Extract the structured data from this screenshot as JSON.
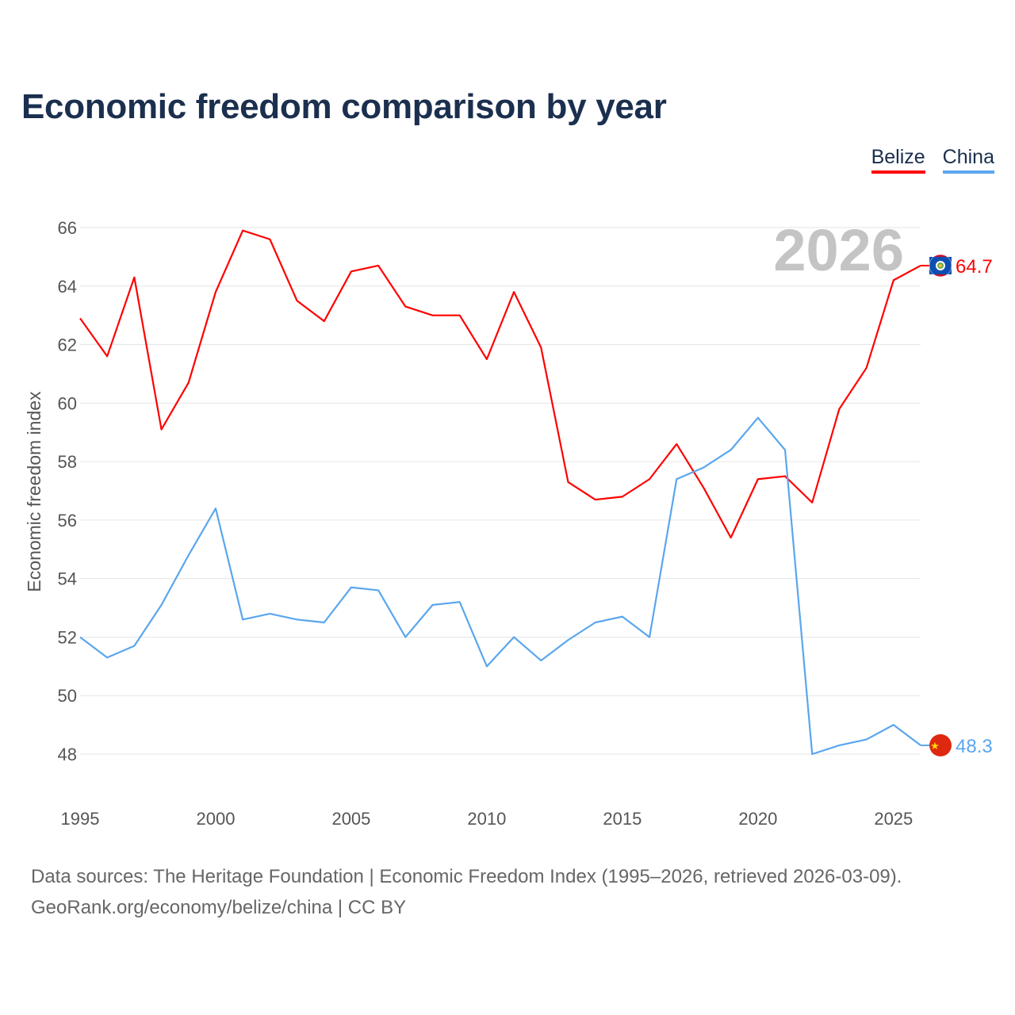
{
  "title": "Economic freedom comparison by year",
  "legend": [
    {
      "name": "Belize",
      "color": "#ff0000"
    },
    {
      "name": "China",
      "color": "#5aa6ee"
    }
  ],
  "footer": {
    "line1": "Data sources: The Heritage Foundation | Economic Freedom Index (1995–2026, retrieved 2026-03-09).",
    "line2": "GeoRank.org/economy/belize/china | CC BY"
  },
  "chart_data": {
    "type": "line",
    "title": "Economic freedom comparison by year",
    "xlabel": "",
    "ylabel": "Economic freedom index",
    "year_watermark": "2026",
    "x": [
      1995,
      1996,
      1997,
      1998,
      1999,
      2000,
      2001,
      2002,
      2003,
      2004,
      2005,
      2006,
      2007,
      2008,
      2009,
      2010,
      2011,
      2012,
      2013,
      2014,
      2015,
      2016,
      2017,
      2018,
      2019,
      2020,
      2021,
      2022,
      2023,
      2024,
      2025,
      2026
    ],
    "xlim": [
      1995,
      2026
    ],
    "ylim": [
      48,
      66
    ],
    "xticks": [
      "1995",
      "2000",
      "2005",
      "2010",
      "2015",
      "2020",
      "2025"
    ],
    "yticks": [
      "48",
      "50",
      "52",
      "54",
      "56",
      "58",
      "60",
      "62",
      "64",
      "66"
    ],
    "grid": true,
    "legend_position": "top-right",
    "series": [
      {
        "name": "Belize",
        "color": "#ff0000",
        "end_label": "64.7",
        "flag": "belize-flag",
        "values": [
          62.9,
          61.6,
          64.3,
          59.1,
          60.7,
          63.8,
          65.9,
          65.6,
          63.5,
          62.8,
          64.5,
          64.7,
          63.3,
          63.0,
          63.0,
          61.5,
          63.8,
          61.9,
          57.3,
          56.7,
          56.8,
          57.4,
          58.6,
          57.1,
          55.4,
          57.4,
          57.5,
          56.6,
          59.8,
          61.2,
          64.2,
          64.7
        ]
      },
      {
        "name": "China",
        "color": "#5aa6ee",
        "end_label": "48.3",
        "flag": "china-flag",
        "values": [
          52.0,
          51.3,
          51.7,
          53.1,
          54.8,
          56.4,
          52.6,
          52.8,
          52.6,
          52.5,
          53.7,
          53.6,
          52.0,
          53.1,
          53.2,
          51.0,
          52.0,
          51.2,
          51.9,
          52.5,
          52.7,
          52.0,
          57.4,
          57.8,
          58.4,
          59.5,
          58.4,
          48.0,
          48.3,
          48.5,
          49.0,
          48.3
        ]
      }
    ]
  }
}
